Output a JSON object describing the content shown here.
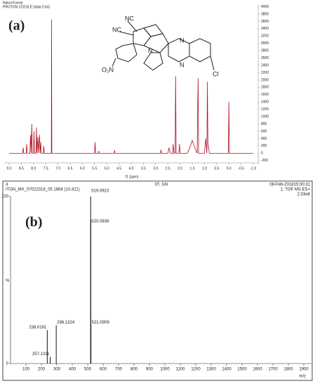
{
  "chart_data": [
    {
      "type": "line",
      "panel": "(a)",
      "header": [
        "Nakul Kumar",
        "PROTON CDCl3 E:\\data CUG"
      ],
      "xlabel": "f1 (ppm)",
      "structure_labels": [
        "NC",
        "NC",
        "N",
        "N",
        "N",
        "Cl",
        "O₂N"
      ],
      "color": "#b01020",
      "x": [
        9.0,
        8.45,
        8.42,
        8.4,
        8.3,
        8.28,
        8.26,
        8.15,
        8.12,
        8.1,
        8.07,
        8.05,
        8.0,
        7.98,
        7.96,
        7.9,
        7.88,
        7.86,
        7.82,
        7.8,
        7.75,
        7.73,
        7.7,
        7.68,
        7.6,
        7.58,
        7.56,
        7.27,
        7.26,
        7.25,
        5.5,
        5.48,
        5.46,
        5.35,
        5.33,
        5.31,
        4.7,
        4.68,
        4.66,
        2.8,
        2.78,
        2.76,
        2.5,
        2.45,
        2.4,
        2.3,
        2.28,
        2.25,
        2.2,
        2.18,
        2.16,
        2.05,
        2.02,
        2.0,
        1.7,
        1.6,
        1.5,
        1.4,
        1.3,
        1.26,
        1.24,
        1.0,
        0.95,
        0.9,
        0.88,
        0.86,
        0.8,
        0.02,
        0.0,
        -0.02,
        -1.0
      ],
      "values": [
        0,
        0,
        150,
        0,
        0,
        250,
        0,
        0,
        500,
        0,
        800,
        0,
        0,
        600,
        0,
        0,
        700,
        0,
        450,
        0,
        500,
        0,
        300,
        0,
        0,
        200,
        0,
        0,
        3650,
        0,
        0,
        300,
        0,
        0,
        60,
        0,
        0,
        80,
        0,
        0,
        100,
        0,
        0,
        150,
        0,
        0,
        250,
        0,
        0,
        2100,
        0,
        0,
        250,
        0,
        0,
        150,
        350,
        150,
        0,
        2050,
        0,
        0,
        400,
        0,
        1950,
        300,
        0,
        0,
        1400,
        0,
        0
      ],
      "xlim": [
        9.2,
        -1.2
      ],
      "xticks": [
        {
          "value": 9,
          "label": "9.0"
        },
        8.5,
        {
          "value": 8,
          "label": "8.0"
        },
        7.5,
        {
          "value": 7,
          "label": "7.0"
        },
        6.5,
        {
          "value": 6,
          "label": "6.0"
        },
        5.5,
        {
          "value": 5,
          "label": "5.0"
        },
        4.5,
        {
          "value": 4,
          "label": "4.0"
        },
        3.5,
        {
          "value": 3,
          "label": "3.0"
        },
        2.5,
        {
          "value": 2,
          "label": "2.0"
        },
        1.5,
        {
          "value": 1,
          "label": "1.0"
        },
        0.5,
        {
          "value": 0,
          "label": "0.0"
        },
        -0.5,
        {
          "value": -1,
          "label": "-1.0"
        }
      ],
      "ylim": [
        -300,
        4050
      ],
      "yticks": [
        -200,
        0,
        200,
        400,
        600,
        800,
        1000,
        1200,
        1400,
        1600,
        1800,
        2000,
        2200,
        2400,
        2600,
        2800,
        3000,
        3200,
        3400,
        3600,
        3800,
        4000
      ]
    },
    {
      "type": "bar",
      "panel": "(b)",
      "header": [
        "4",
        "IIT, GN",
        "08-Feb-201815:00:31",
        "ITGN_MX_07022018_05 1664 (10.421)",
        "1: TOF MS ES+",
        "2.03e6"
      ],
      "xlabel": "m/z",
      "ylabel": "%",
      "color": "#111",
      "x": [
        238.0191,
        257.1311,
        296.1324,
        519.0923,
        520.0939,
        521.0909
      ],
      "values": [
        20,
        4,
        23,
        100,
        86,
        23
      ],
      "xlim": [
        0,
        1950
      ],
      "xticks": [
        100,
        200,
        300,
        400,
        500,
        600,
        700,
        800,
        900,
        1000,
        1100,
        1200,
        1300,
        1400,
        1500,
        1600,
        1700,
        1800,
        1900
      ],
      "ylim": [
        0,
        100
      ],
      "yticks": [
        0,
        100
      ]
    }
  ]
}
